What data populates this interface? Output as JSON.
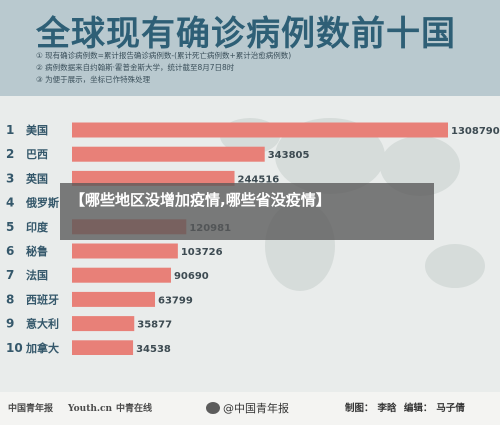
{
  "title": "全球现有确诊病例数前十国",
  "notes": [
    "① 现有确诊病例数=累计报告确诊病例数-(累计死亡病例数+累计治愈病例数)",
    "② 病例数据来自约翰斯·霍普金斯大学，统计截至8月7日8时",
    "③ 为便于展示，坐标已作特殊处理"
  ],
  "overlay": {
    "text": "【哪些地区没增加疫情,哪些省没疫情】"
  },
  "footer": {
    "logos": [
      "中国青年报",
      "Youth.cn",
      "中青在线"
    ],
    "weibo": "@中国青年报",
    "credits": {
      "maker_label": "制图：",
      "maker": "李晗",
      "editor_label": "编辑：",
      "editor": "马子倩"
    }
  },
  "colors": {
    "bar": "#e88078",
    "header_bg": "#b9c9cf",
    "title": "#2e5f76"
  },
  "chart_data": {
    "type": "bar",
    "orientation": "horizontal",
    "title": "全球现有确诊病例数前十国",
    "ranks": [
      "1",
      "2",
      "3",
      "4",
      "5",
      "6",
      "7",
      "8",
      "9",
      "10"
    ],
    "categories": [
      "美国",
      "巴西",
      "英国",
      "俄罗斯",
      "印度",
      "秘鲁",
      "法国",
      "西班牙",
      "意大利",
      "加拿大"
    ],
    "values": [
      1308790,
      343805,
      244516,
      0,
      120981,
      103726,
      90690,
      63799,
      35877,
      34538
    ],
    "value_labels": [
      "1308790",
      "343805",
      "244516",
      "",
      "120981",
      "103726",
      "90690",
      "63799",
      "35877",
      "34538"
    ],
    "scale": "special"
  }
}
